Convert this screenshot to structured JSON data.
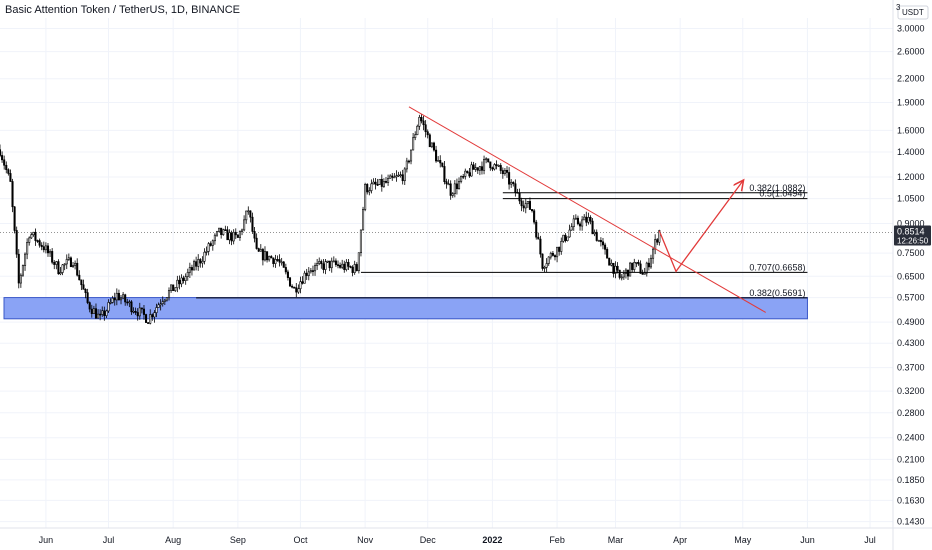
{
  "header": {
    "title": "Basic Attention Token / TetherUS, 1D, BINANCE"
  },
  "price_axis": {
    "currency_label": "USDT",
    "small_label": "3",
    "last_price_label": "0.8514",
    "countdown_label": "12:26:50"
  },
  "colors": {
    "background": "#ffffff",
    "candle_up": "#ffffff",
    "candle_down": "#000000",
    "candle_border": "#000000",
    "trendline": "#e23a3a",
    "support_zone": "#8aa3f5",
    "support_zone_border": "#3a58c8",
    "last_price_badge": "#2a2e39",
    "grid": "#f0f3fa"
  },
  "chart_data": {
    "type": "candlestick",
    "title": "Basic Attention Token / TetherUS, 1D, BINANCE",
    "ylabel": "USDT",
    "y_scale": "log",
    "ylim": [
      0.1375,
      3.2
    ],
    "xlim": [
      "2021-05-10",
      "2022-07-12"
    ],
    "x_ticks": [
      {
        "date": "2021-06-01",
        "label": "Jun"
      },
      {
        "date": "2021-07-01",
        "label": "Jul"
      },
      {
        "date": "2021-08-01",
        "label": "Aug"
      },
      {
        "date": "2021-09-01",
        "label": "Sep"
      },
      {
        "date": "2021-10-01",
        "label": "Oct"
      },
      {
        "date": "2021-11-01",
        "label": "Nov"
      },
      {
        "date": "2021-12-01",
        "label": "Dec"
      },
      {
        "date": "2022-01-01",
        "label": "2022"
      },
      {
        "date": "2022-02-01",
        "label": "Feb"
      },
      {
        "date": "2022-03-01",
        "label": "Mar"
      },
      {
        "date": "2022-04-01",
        "label": "Apr"
      },
      {
        "date": "2022-05-01",
        "label": "May"
      },
      {
        "date": "2022-06-01",
        "label": "Jun"
      },
      {
        "date": "2022-07-01",
        "label": "Jul"
      }
    ],
    "y_ticks": [
      3.0,
      2.6,
      2.2,
      1.9,
      1.6,
      1.4,
      1.2,
      1.05,
      0.9,
      0.75,
      0.65,
      0.57,
      0.49,
      0.43,
      0.37,
      0.32,
      0.28,
      0.24,
      0.21,
      0.185,
      0.163,
      0.143
    ],
    "y_tick_labels": [
      "3.0000",
      "2.6000",
      "2.2000",
      "1.9000",
      "1.6000",
      "1.4000",
      "1.2000",
      "1.0500",
      "0.9000",
      "0.7500",
      "0.6500",
      "0.5700",
      "0.4900",
      "0.4300",
      "0.3700",
      "0.3200",
      "0.2800",
      "0.2400",
      "0.2100",
      "0.1850",
      "0.1630",
      "0.1430"
    ],
    "last_price": 0.8514,
    "price_path": [
      [
        "2021-05-10",
        1.42
      ],
      [
        "2021-05-15",
        1.15
      ],
      [
        "2021-05-19",
        0.62
      ],
      [
        "2021-05-24",
        0.85
      ],
      [
        "2021-05-31",
        0.78
      ],
      [
        "2021-06-07",
        0.68
      ],
      [
        "2021-06-14",
        0.72
      ],
      [
        "2021-06-21",
        0.55
      ],
      [
        "2021-06-27",
        0.5
      ],
      [
        "2021-07-05",
        0.58
      ],
      [
        "2021-07-12",
        0.54
      ],
      [
        "2021-07-20",
        0.5
      ],
      [
        "2021-07-27",
        0.57
      ],
      [
        "2021-08-05",
        0.63
      ],
      [
        "2021-08-14",
        0.72
      ],
      [
        "2021-08-23",
        0.85
      ],
      [
        "2021-09-01",
        0.82
      ],
      [
        "2021-09-06",
        0.98
      ],
      [
        "2021-09-10",
        0.75
      ],
      [
        "2021-09-20",
        0.72
      ],
      [
        "2021-09-28",
        0.6
      ],
      [
        "2021-10-05",
        0.68
      ],
      [
        "2021-10-15",
        0.7
      ],
      [
        "2021-10-28",
        0.68
      ],
      [
        "2021-11-01",
        1.12
      ],
      [
        "2021-11-10",
        1.15
      ],
      [
        "2021-11-20",
        1.22
      ],
      [
        "2021-11-27",
        1.75
      ],
      [
        "2021-12-04",
        1.4
      ],
      [
        "2021-12-12",
        1.1
      ],
      [
        "2021-12-22",
        1.25
      ],
      [
        "2021-12-30",
        1.32
      ],
      [
        "2022-01-07",
        1.22
      ],
      [
        "2022-01-14",
        1.05
      ],
      [
        "2022-01-20",
        0.98
      ],
      [
        "2022-01-25",
        0.7
      ],
      [
        "2022-02-02",
        0.78
      ],
      [
        "2022-02-09",
        0.9
      ],
      [
        "2022-02-16",
        0.92
      ],
      [
        "2022-02-24",
        0.75
      ],
      [
        "2022-03-03",
        0.64
      ],
      [
        "2022-03-10",
        0.7
      ],
      [
        "2022-03-15",
        0.66
      ],
      [
        "2022-03-22",
        0.86
      ]
    ],
    "fib_levels": [
      {
        "label": "0.382(1.0882)",
        "value": 1.0882,
        "x_start": "2022-01-06"
      },
      {
        "label": "0.5(1.0494)",
        "value": 1.0494,
        "x_start": "2022-01-06"
      },
      {
        "label": "0.707(0.6658)",
        "value": 0.6658,
        "x_start": "2021-10-30"
      },
      {
        "label": "0.382(0.5691)",
        "value": 0.5691,
        "x_start": "2021-08-12"
      }
    ],
    "horizontal_line_end": "2022-06-01",
    "support_zone": {
      "low": 0.5,
      "high": 0.57,
      "x_start": "2021-05-10",
      "x_end": "2022-06-01"
    },
    "trendline": {
      "start": [
        "2021-11-22",
        1.85
      ],
      "end": [
        "2022-05-12",
        0.52
      ]
    },
    "projection_path": [
      [
        "2022-03-22",
        0.86
      ],
      [
        "2022-03-30",
        0.67
      ],
      [
        "2022-05-01",
        1.17
      ]
    ]
  }
}
